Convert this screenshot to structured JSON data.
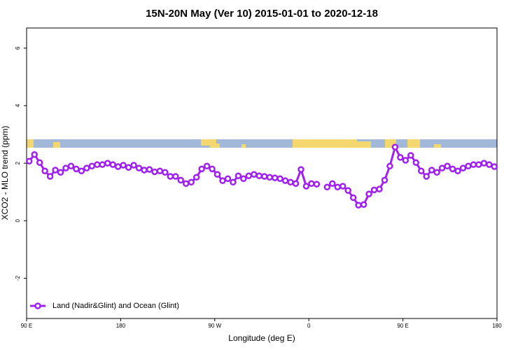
{
  "chart_data": {
    "type": "line",
    "title": "15N-20N May (Ver 10)   2015-01-01 to 2020-12-18",
    "xlabel": "Longitude (deg E)",
    "ylabel": "XCO2 - MLO trend (ppm)",
    "x": [
      92.5,
      97.5,
      102.5,
      107.5,
      112.5,
      117.5,
      122.5,
      127.5,
      132.5,
      137.5,
      142.5,
      147.5,
      152.5,
      157.5,
      162.5,
      167.5,
      172.5,
      177.5,
      182.5,
      187.5,
      192.5,
      197.5,
      202.5,
      207.5,
      212.5,
      217.5,
      222.5,
      227.5,
      232.5,
      237.5,
      242.5,
      247.5,
      252.5,
      257.5,
      262.5,
      267.5,
      272.5,
      277.5,
      282.5,
      287.5,
      292.5,
      297.5,
      302.5,
      307.5,
      312.5,
      317.5,
      322.5,
      327.5,
      332.5,
      337.5,
      342.5,
      347.5,
      352.5,
      357.5,
      362.5,
      367.5,
      372.5,
      377.5,
      382.5,
      387.5,
      392.5,
      397.5,
      402.5,
      407.5,
      412.5,
      417.5,
      422.5,
      427.5,
      432.5,
      437.5,
      442.5,
      447.5,
      452.5,
      457.5,
      462.5,
      467.5,
      472.5,
      477.5,
      482.5,
      487.5,
      492.5,
      497.5,
      502.5,
      507.5,
      512.5,
      517.5,
      522.5,
      527.5,
      532.5,
      537.5
    ],
    "series": [
      {
        "name": "Land (Nadir&Glint) and Ocean (Glint)",
        "color": "#a020f0",
        "values": [
          2.07,
          2.3,
          2.02,
          1.73,
          1.54,
          1.76,
          1.68,
          1.83,
          1.9,
          1.8,
          1.73,
          1.83,
          1.9,
          1.95,
          1.95,
          2.0,
          1.95,
          1.88,
          1.93,
          1.85,
          1.93,
          1.83,
          1.76,
          1.78,
          1.7,
          1.73,
          1.68,
          1.54,
          1.54,
          1.41,
          1.29,
          1.34,
          1.51,
          1.8,
          1.9,
          1.8,
          1.61,
          1.39,
          1.46,
          1.34,
          1.56,
          1.46,
          1.56,
          1.61,
          1.56,
          1.54,
          1.51,
          1.49,
          1.46,
          1.39,
          1.34,
          1.29,
          1.78,
          1.2,
          1.29,
          1.27,
          null,
          1.17,
          1.29,
          1.17,
          1.2,
          1.05,
          0.8,
          0.54,
          0.56,
          0.93,
          1.07,
          1.1,
          1.41,
          1.9,
          2.56,
          2.2,
          2.1,
          2.27,
          2.02,
          1.73,
          1.54,
          1.76,
          1.68,
          1.83,
          1.9,
          1.8,
          1.73,
          1.83,
          1.9,
          1.95,
          1.95,
          2.0,
          1.95,
          1.88
        ]
      }
    ],
    "xlim": [
      90,
      540
    ],
    "xticks": [
      {
        "value": 90,
        "label": "90 E"
      },
      180,
      {
        "value": 270,
        "label": "90 W"
      },
      {
        "value": 360,
        "label": "0"
      },
      {
        "value": 450,
        "label": "90 E"
      },
      {
        "value": 540,
        "label": "180"
      }
    ],
    "ylim": [
      -3.4,
      6.7
    ],
    "yticks": [
      -2,
      0,
      2,
      4,
      6
    ],
    "legend": "bottom-left"
  }
}
